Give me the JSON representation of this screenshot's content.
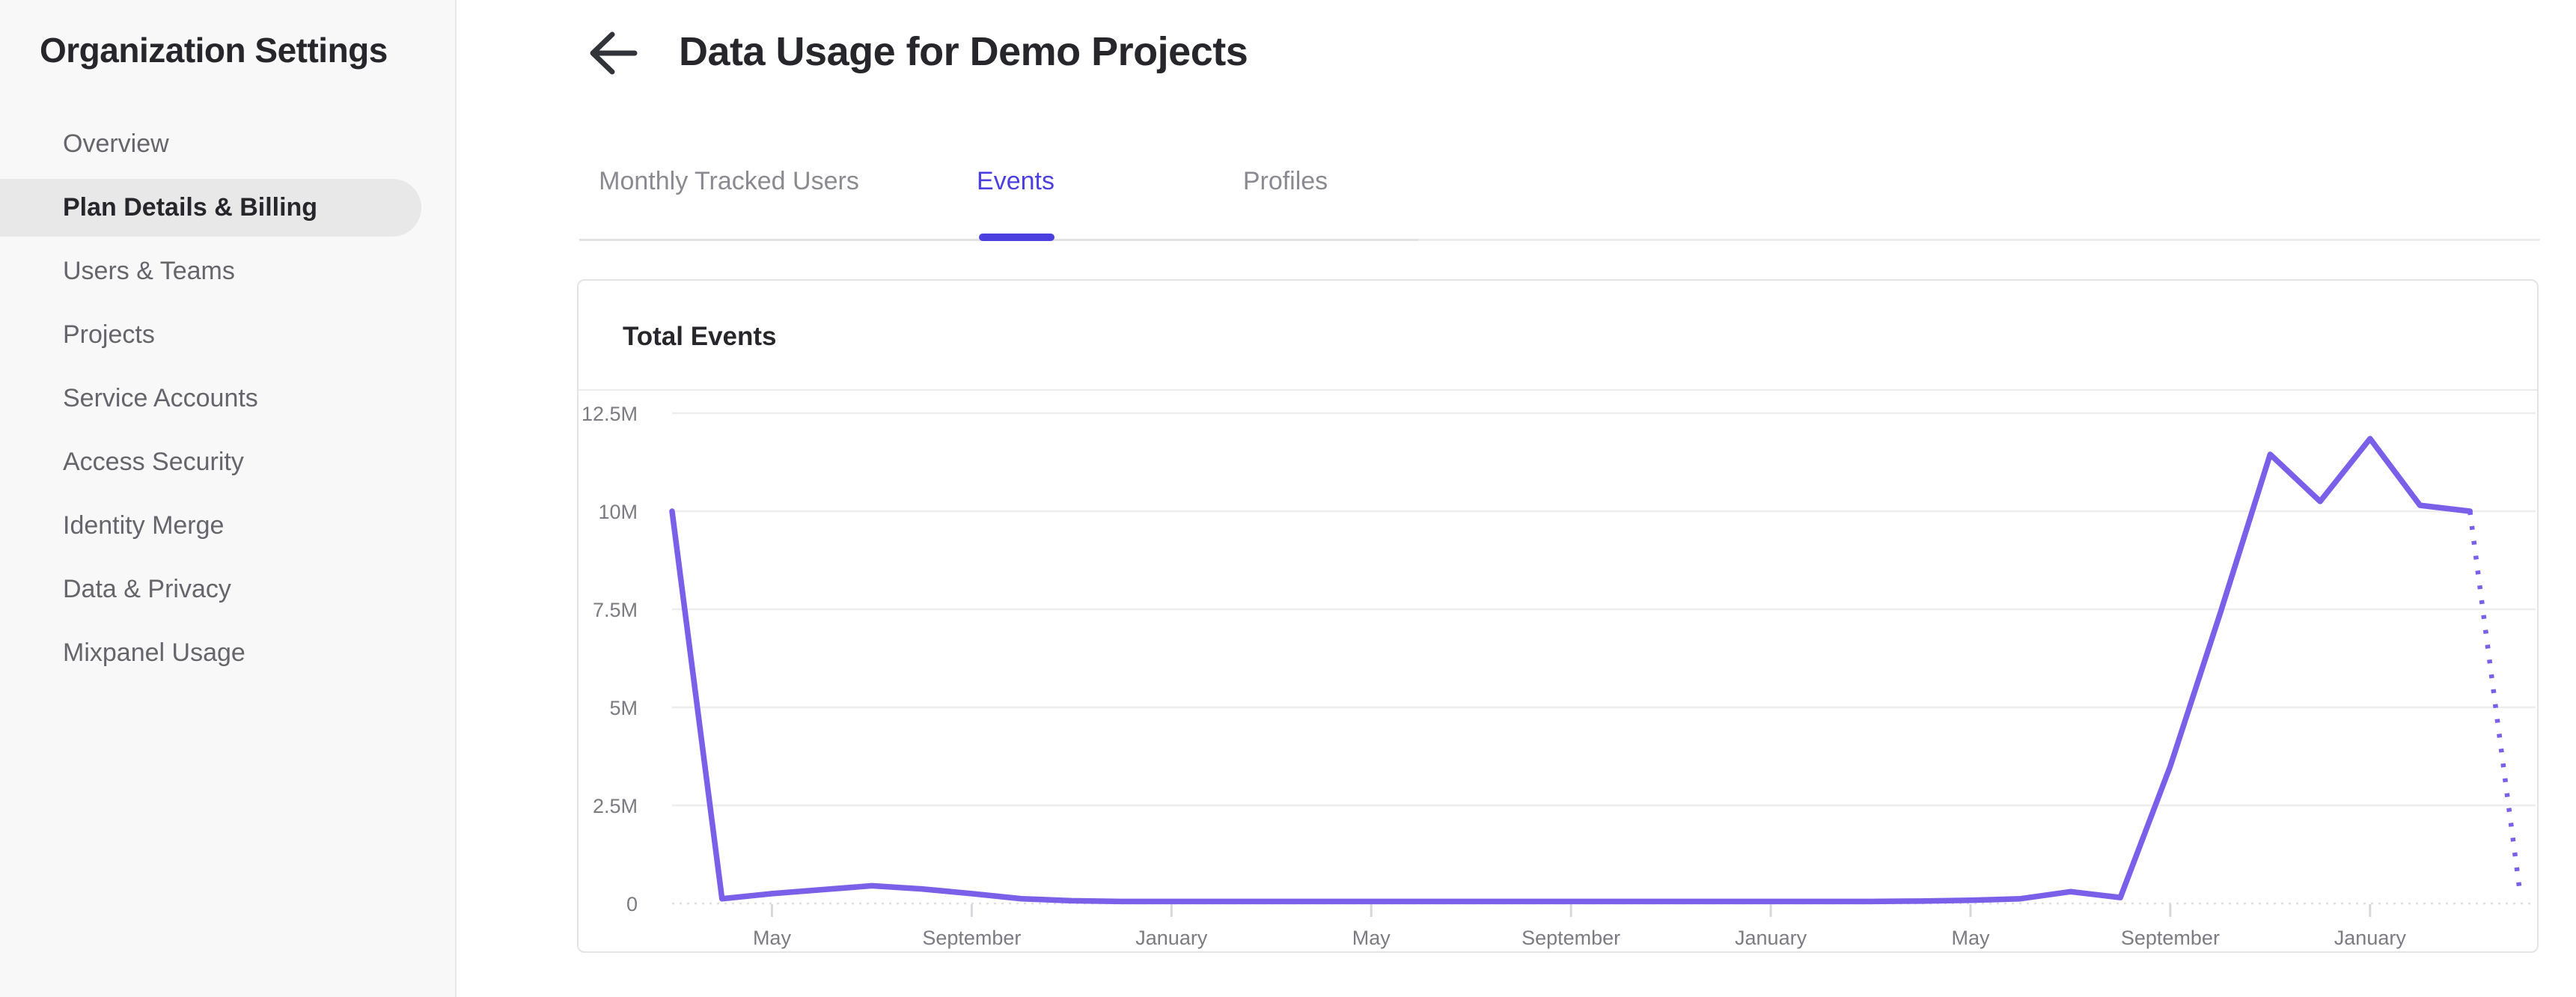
{
  "sidebar": {
    "title": "Organization Settings",
    "items": [
      {
        "label": "Overview",
        "selected": false
      },
      {
        "label": "Plan Details & Billing",
        "selected": true
      },
      {
        "label": "Users & Teams",
        "selected": false
      },
      {
        "label": "Projects",
        "selected": false
      },
      {
        "label": "Service Accounts",
        "selected": false
      },
      {
        "label": "Access Security",
        "selected": false
      },
      {
        "label": "Identity Merge",
        "selected": false
      },
      {
        "label": "Data & Privacy",
        "selected": false
      },
      {
        "label": "Mixpanel Usage",
        "selected": false
      }
    ]
  },
  "header": {
    "title": "Data Usage for Demo Projects",
    "back_icon": "arrow-left-icon"
  },
  "tabs": [
    {
      "label": "Monthly Tracked Users",
      "active": false
    },
    {
      "label": "Events",
      "active": true
    },
    {
      "label": "Profiles",
      "active": false
    }
  ],
  "card": {
    "title": "Total Events"
  },
  "colors": {
    "accent": "#4c3fe0",
    "line": "#7a5fe8",
    "grid": "#ededef",
    "zero_line": "#dedee0",
    "tick": "#d8d8da",
    "axis_text": "#7b7b81",
    "text_dark": "#26262b"
  },
  "chart_data": {
    "type": "line",
    "title": "Total Events",
    "series": [
      {
        "name": "Total Events",
        "values_millions": [
          10,
          0.12,
          0.25,
          0.35,
          0.45,
          0.37,
          0.25,
          0.12,
          0.07,
          0.05,
          0.05,
          0.05,
          0.05,
          0.05,
          0.05,
          0.05,
          0.05,
          0.05,
          0.05,
          0.05,
          0.05,
          0.05,
          0.05,
          0.05,
          0.05,
          0.06,
          0.08,
          0.12,
          0.3,
          0.15,
          3.5,
          7.4,
          11.45,
          10.25,
          11.85,
          10.15,
          10.0
        ]
      }
    ],
    "projected_point": {
      "value_millions": 0.3,
      "style": "dotted"
    },
    "x_tick_indices": [
      2,
      6,
      10,
      14,
      18,
      22,
      26,
      30,
      34
    ],
    "x_tick_labels": [
      "May",
      "September",
      "January",
      "May",
      "September",
      "January",
      "May",
      "September",
      "January"
    ],
    "y_tick_labels": [
      "12.5M",
      "10M",
      "7.5M",
      "5M",
      "2.5M",
      "0"
    ],
    "y_tick_values_millions": [
      12.5,
      10,
      7.5,
      5,
      2.5,
      0
    ],
    "ylim_millions": [
      0,
      13.1
    ],
    "grid": "horizontal",
    "legend": "none"
  }
}
